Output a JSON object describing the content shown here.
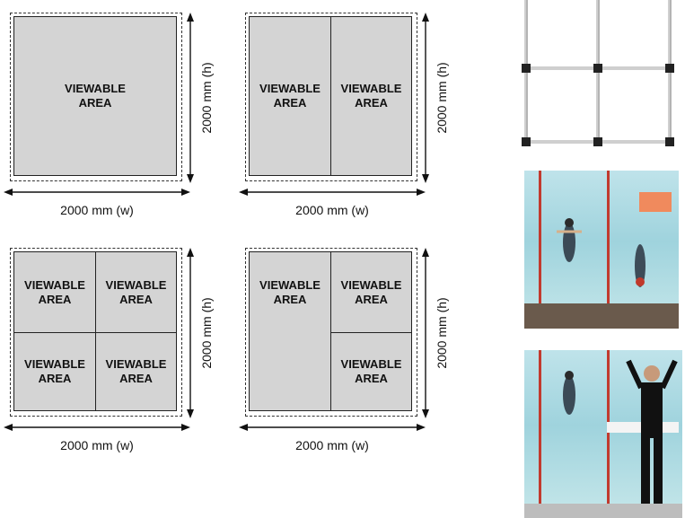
{
  "viewable_area_label": "VIEWABLE\nAREA",
  "width_label": "2000 mm  (w)",
  "height_label": "2000 mm  (h)",
  "diagrams": [
    {
      "layout": "single"
    },
    {
      "layout": "two-vertical"
    },
    {
      "layout": "four-quad"
    },
    {
      "layout": "one-left-two-right"
    }
  ],
  "colors": {
    "panel": "#d4d4d4",
    "line": "#222222",
    "lane": "#c23a2e"
  }
}
